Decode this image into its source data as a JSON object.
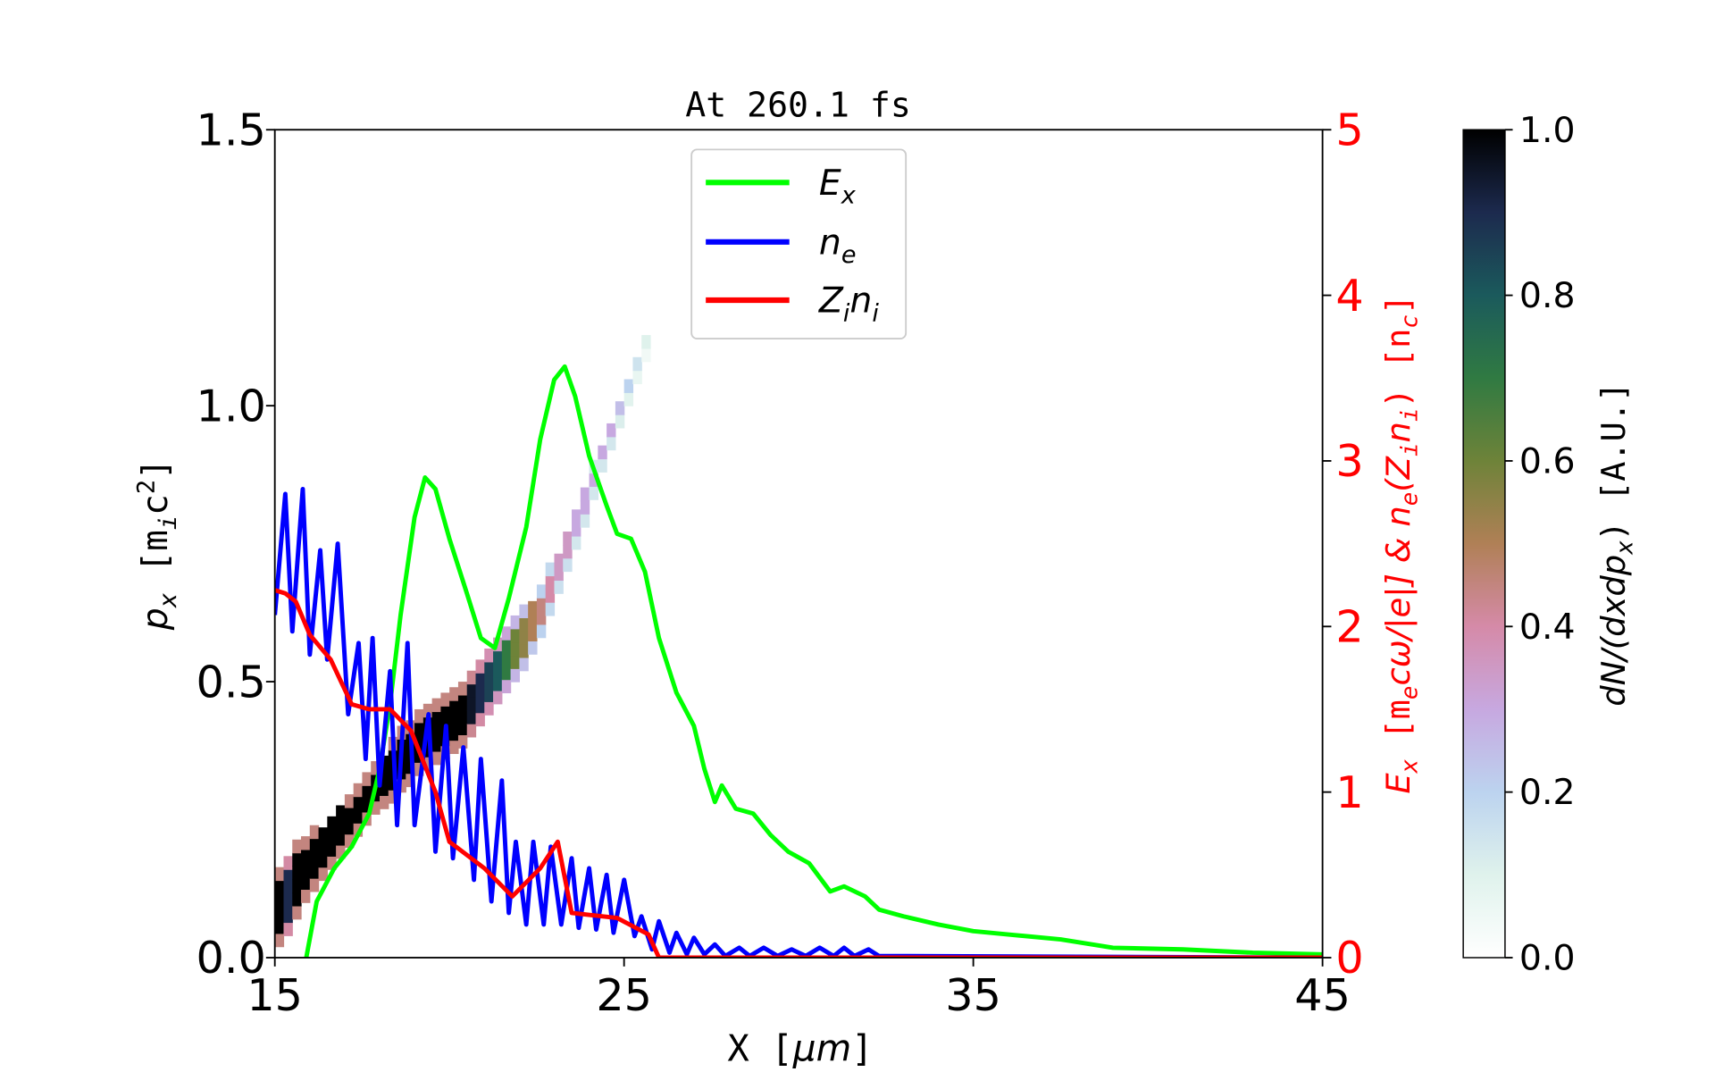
{
  "chart_data": {
    "type": "heatmap+line",
    "title": "At 260.1 fs",
    "xlabel": {
      "main": "X [",
      "unit": "μm",
      "end": "]"
    },
    "ylabel_left": {
      "p": "p",
      "sub": "x",
      "rest": " [m",
      "sub2": "i",
      "c": "c",
      "sup": "2",
      "end": "]"
    },
    "ylabel_right": {
      "e": "E",
      "esub": "x",
      "a": " [m",
      "asub": "e",
      "b": "cω/|e|] & ",
      "n": "n",
      "nsub": "e",
      "c": "(Z",
      "csub": "i",
      "d": "n",
      "dsub": "i",
      "f": ") [n",
      "fsub": "c",
      "g": "]"
    },
    "colorbar_label": {
      "a": "dN/(dxdp",
      "sub": "x",
      "b": ") [A.U.]"
    },
    "xlim": [
      15,
      45
    ],
    "ylim_left": [
      0,
      1.5
    ],
    "ylim_right": [
      0,
      5
    ],
    "clim": [
      0,
      1
    ],
    "xticks": [
      "15",
      "25",
      "35",
      "45"
    ],
    "yticks_left": [
      "0.0",
      "0.5",
      "1.0",
      "1.5"
    ],
    "yticks_right": [
      "0",
      "1",
      "2",
      "3",
      "4",
      "5"
    ],
    "cbar_ticks": [
      "0.0",
      "0.2",
      "0.4",
      "0.6",
      "0.8",
      "1.0"
    ],
    "colormap": "cubehelix_r",
    "right_axis_color": "#ff0000",
    "legend": {
      "position": "upper-center",
      "entries": [
        {
          "label": "E",
          "sub": "x",
          "color": "#00ff00"
        },
        {
          "label": "n",
          "sub": "e",
          "color": "#0000ff"
        },
        {
          "label": "Z",
          "sub": "i",
          "label2": "n",
          "sub2": "i",
          "color": "#ff0000"
        }
      ]
    },
    "series": [
      {
        "name": "Ex",
        "axis": "right",
        "color": "#00ff00",
        "points": [
          [
            15.9,
            0
          ],
          [
            16.2,
            0.34
          ],
          [
            16.7,
            0.54
          ],
          [
            17.2,
            0.67
          ],
          [
            17.7,
            0.87
          ],
          [
            18,
            1.14
          ],
          [
            18.3,
            1.53
          ],
          [
            18.6,
            2.07
          ],
          [
            19,
            2.66
          ],
          [
            19.3,
            2.9
          ],
          [
            19.6,
            2.83
          ],
          [
            20,
            2.53
          ],
          [
            20.5,
            2.2
          ],
          [
            20.9,
            1.93
          ],
          [
            21.3,
            1.87
          ],
          [
            21.7,
            2.17
          ],
          [
            22.2,
            2.6
          ],
          [
            22.6,
            3.13
          ],
          [
            23,
            3.49
          ],
          [
            23.3,
            3.57
          ],
          [
            23.6,
            3.39
          ],
          [
            24,
            3.03
          ],
          [
            24.5,
            2.73
          ],
          [
            24.8,
            2.56
          ],
          [
            25.2,
            2.53
          ],
          [
            25.6,
            2.33
          ],
          [
            26,
            1.93
          ],
          [
            26.5,
            1.6
          ],
          [
            27,
            1.4
          ],
          [
            27.3,
            1.14
          ],
          [
            27.6,
            0.94
          ],
          [
            27.8,
            1.04
          ],
          [
            28.2,
            0.9
          ],
          [
            28.7,
            0.87
          ],
          [
            29.2,
            0.74
          ],
          [
            29.7,
            0.64
          ],
          [
            30.3,
            0.57
          ],
          [
            30.9,
            0.4
          ],
          [
            31.3,
            0.43
          ],
          [
            31.9,
            0.37
          ],
          [
            32.3,
            0.29
          ],
          [
            33,
            0.25
          ],
          [
            34,
            0.2
          ],
          [
            35,
            0.16
          ],
          [
            36,
            0.14
          ],
          [
            37.5,
            0.11
          ],
          [
            39,
            0.06
          ],
          [
            41,
            0.05
          ],
          [
            43,
            0.03
          ],
          [
            45,
            0.02
          ]
        ]
      },
      {
        "name": "ne",
        "axis": "right",
        "color": "#0000ff",
        "points": [
          [
            15,
            2.07
          ],
          [
            15.3,
            2.8
          ],
          [
            15.5,
            1.97
          ],
          [
            15.8,
            2.83
          ],
          [
            16.0,
            1.83
          ],
          [
            16.3,
            2.46
          ],
          [
            16.5,
            1.8
          ],
          [
            16.8,
            2.5
          ],
          [
            17.1,
            1.47
          ],
          [
            17.4,
            1.9
          ],
          [
            17.6,
            1.2
          ],
          [
            17.8,
            1.93
          ],
          [
            18.0,
            1.04
          ],
          [
            18.3,
            1.73
          ],
          [
            18.5,
            0.8
          ],
          [
            18.8,
            1.9
          ],
          [
            19.0,
            0.8
          ],
          [
            19.4,
            1.47
          ],
          [
            19.6,
            0.64
          ],
          [
            19.9,
            1.4
          ],
          [
            20.1,
            0.6
          ],
          [
            20.4,
            1.27
          ],
          [
            20.7,
            0.47
          ],
          [
            20.9,
            1.2
          ],
          [
            21.2,
            0.34
          ],
          [
            21.5,
            1.07
          ],
          [
            21.7,
            0.27
          ],
          [
            21.9,
            0.7
          ],
          [
            22.2,
            0.2
          ],
          [
            22.4,
            0.7
          ],
          [
            22.7,
            0.2
          ],
          [
            22.9,
            0.67
          ],
          [
            23.2,
            0.2
          ],
          [
            23.5,
            0.6
          ],
          [
            23.7,
            0.18
          ],
          [
            24.0,
            0.54
          ],
          [
            24.2,
            0.17
          ],
          [
            24.5,
            0.5
          ],
          [
            24.7,
            0.15
          ],
          [
            25.0,
            0.47
          ],
          [
            25.3,
            0.13
          ],
          [
            25.5,
            0.25
          ],
          [
            25.8,
            0.05
          ],
          [
            26.0,
            0.22
          ],
          [
            26.3,
            0.03
          ],
          [
            26.5,
            0.15
          ],
          [
            26.8,
            0.02
          ],
          [
            27.0,
            0.12
          ],
          [
            27.3,
            0.02
          ],
          [
            27.6,
            0.08
          ],
          [
            27.9,
            0.01
          ],
          [
            28.3,
            0.06
          ],
          [
            28.6,
            0.01
          ],
          [
            29.0,
            0.06
          ],
          [
            29.4,
            0.01
          ],
          [
            29.8,
            0.05
          ],
          [
            30.2,
            0.01
          ],
          [
            30.6,
            0.06
          ],
          [
            31.0,
            0.01
          ],
          [
            31.3,
            0.06
          ],
          [
            31.6,
            0.01
          ],
          [
            32.0,
            0.05
          ],
          [
            32.3,
            0.01
          ],
          [
            33,
            0.01
          ],
          [
            45,
            0.0
          ]
        ]
      },
      {
        "name": "Zini",
        "axis": "right",
        "color": "#ff0000",
        "points": [
          [
            15,
            2.22
          ],
          [
            15.3,
            2.2
          ],
          [
            15.6,
            2.15
          ],
          [
            16,
            1.95
          ],
          [
            16.6,
            1.8
          ],
          [
            17.2,
            1.53
          ],
          [
            17.7,
            1.5
          ],
          [
            18.3,
            1.5
          ],
          [
            18.9,
            1.37
          ],
          [
            19.6,
            1.0
          ],
          [
            20.0,
            0.7
          ],
          [
            21.0,
            0.54
          ],
          [
            21.8,
            0.37
          ],
          [
            22.6,
            0.54
          ],
          [
            23.1,
            0.7
          ],
          [
            23.5,
            0.27
          ],
          [
            24.8,
            0.24
          ],
          [
            25.7,
            0.14
          ],
          [
            26.0,
            0.0
          ],
          [
            45,
            0.0
          ]
        ]
      }
    ],
    "heatmap_bins": [
      [
        15.0,
        0.02,
        0.15,
        1
      ],
      [
        15.25,
        0.04,
        0.18,
        0.9
      ],
      [
        15.5,
        0.07,
        0.2,
        1
      ],
      [
        15.75,
        0.1,
        0.21,
        1
      ],
      [
        16.0,
        0.12,
        0.22,
        1
      ],
      [
        16.25,
        0.14,
        0.23,
        1
      ],
      [
        16.5,
        0.16,
        0.25,
        1
      ],
      [
        16.75,
        0.18,
        0.27,
        1
      ],
      [
        17.0,
        0.2,
        0.28,
        1
      ],
      [
        17.25,
        0.22,
        0.3,
        1
      ],
      [
        17.5,
        0.24,
        0.32,
        1
      ],
      [
        17.75,
        0.26,
        0.34,
        1
      ],
      [
        18.0,
        0.27,
        0.36,
        1
      ],
      [
        18.25,
        0.28,
        0.38,
        1
      ],
      [
        18.5,
        0.3,
        0.4,
        1
      ],
      [
        18.75,
        0.31,
        0.42,
        1
      ],
      [
        19.0,
        0.33,
        0.44,
        1
      ],
      [
        19.25,
        0.34,
        0.45,
        1
      ],
      [
        19.5,
        0.35,
        0.45,
        1
      ],
      [
        19.75,
        0.36,
        0.46,
        1
      ],
      [
        20.0,
        0.37,
        0.47,
        1
      ],
      [
        20.25,
        0.38,
        0.48,
        1
      ],
      [
        20.5,
        0.4,
        0.5,
        0.95
      ],
      [
        20.75,
        0.42,
        0.52,
        0.9
      ],
      [
        21.0,
        0.44,
        0.54,
        0.85
      ],
      [
        21.25,
        0.46,
        0.56,
        0.8
      ],
      [
        21.5,
        0.48,
        0.58,
        0.7
      ],
      [
        21.75,
        0.5,
        0.6,
        0.6
      ],
      [
        22.0,
        0.52,
        0.62,
        0.55
      ],
      [
        22.25,
        0.55,
        0.64,
        0.5
      ],
      [
        22.5,
        0.58,
        0.66,
        0.45
      ],
      [
        22.75,
        0.62,
        0.7,
        0.4
      ],
      [
        23.0,
        0.66,
        0.72,
        0.35
      ],
      [
        23.25,
        0.7,
        0.76,
        0.35
      ],
      [
        23.5,
        0.74,
        0.8,
        0.3
      ],
      [
        23.75,
        0.78,
        0.84,
        0.3
      ],
      [
        24.0,
        0.83,
        0.88,
        0.3
      ],
      [
        24.25,
        0.88,
        0.92,
        0.3
      ],
      [
        24.5,
        0.92,
        0.96,
        0.3
      ],
      [
        24.75,
        0.96,
        1.0,
        0.25
      ],
      [
        25.0,
        1.0,
        1.04,
        0.2
      ],
      [
        25.25,
        1.04,
        1.08,
        0.15
      ],
      [
        25.5,
        1.08,
        1.12,
        0.1
      ]
    ]
  }
}
